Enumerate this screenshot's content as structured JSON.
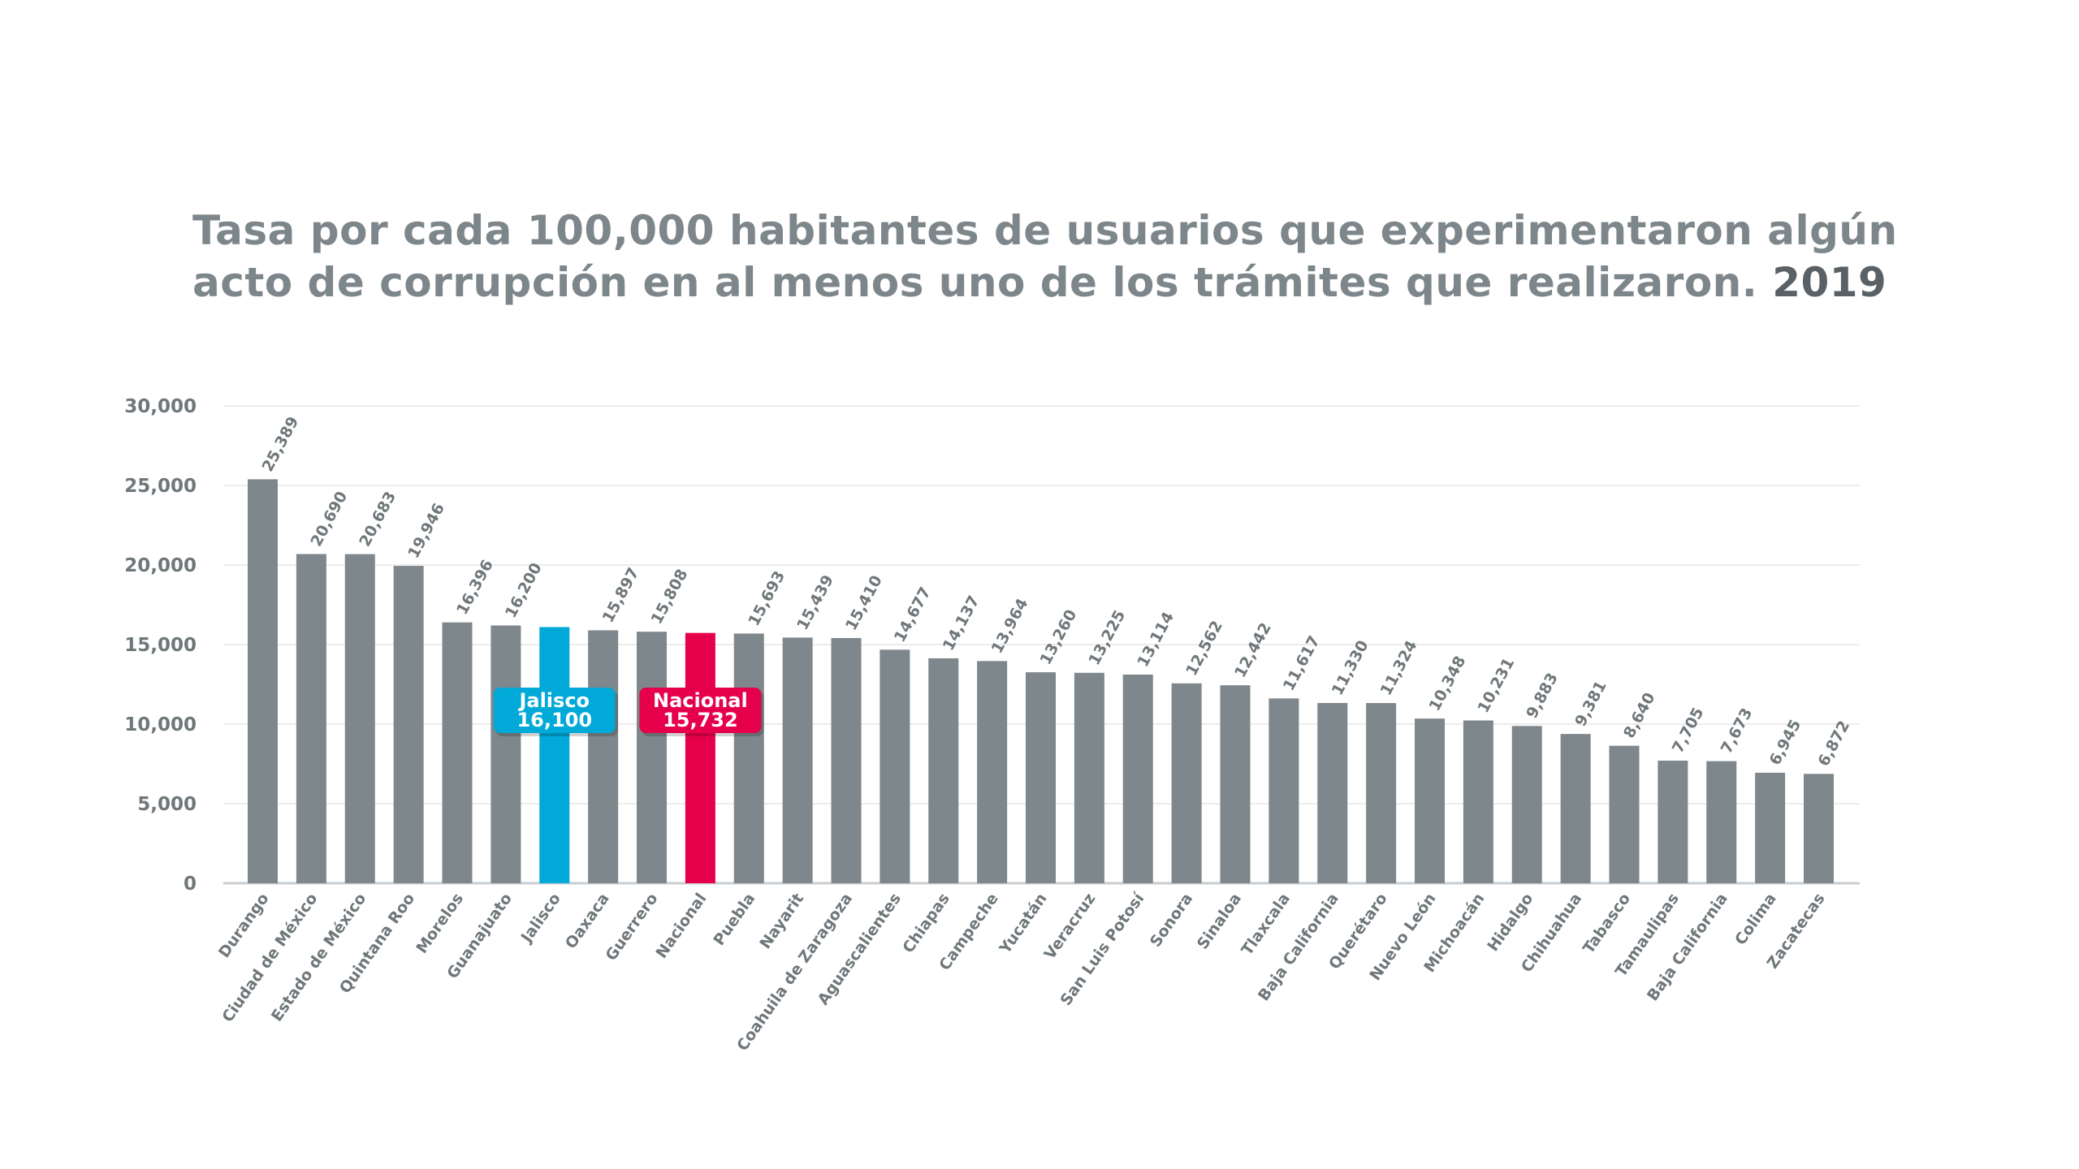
{
  "title": {
    "line1": "Tasa por cada 100,000 habitantes de usuarios que experimentaron algún",
    "line2": "acto de corrupción en al menos uno de los trámites que realizaron.",
    "year": "2019"
  },
  "colors": {
    "bar": "#7e878c",
    "jalisco": "#00a9d8",
    "nacional": "#e6004c"
  },
  "chart_data": {
    "type": "bar",
    "ylim": [
      0,
      30000
    ],
    "yticks": [
      0,
      5000,
      10000,
      15000,
      20000,
      25000,
      30000
    ],
    "ytick_labels": [
      "0",
      "5,000",
      "10,000",
      "15,000",
      "20,000",
      "25,000",
      "30,000"
    ],
    "grid": true,
    "categories": [
      "Durango",
      "Ciudad de México",
      "Estado de México",
      "Quintana Roo",
      "Morelos",
      "Guanajuato",
      "Jalisco",
      "Oaxaca",
      "Guerrero",
      "Nacional",
      "Puebla",
      "Nayarit",
      "Coahuila de Zaragoza",
      "Aguascalientes",
      "Chiapas",
      "Campeche",
      "Yucatán",
      "Veracruz",
      "San Luis Potosí",
      "Sonora",
      "Sinaloa",
      "Tlaxcala",
      "Baja California",
      "Querétaro",
      "Nuevo León",
      "Michoacán",
      "Hidalgo",
      "Chihuahua",
      "Tabasco",
      "Tamaulipas",
      "Baja California",
      "Colima",
      "Zacatecas"
    ],
    "values": [
      25389,
      20690,
      20683,
      19946,
      16396,
      16200,
      16100,
      15897,
      15808,
      15732,
      15693,
      15439,
      15410,
      14677,
      14137,
      13964,
      13260,
      13225,
      13114,
      12562,
      12442,
      11617,
      11330,
      11324,
      10348,
      10231,
      9883,
      9381,
      8640,
      7705,
      7673,
      6945,
      6872
    ],
    "value_labels": [
      "25,389",
      "20,690",
      "20,683",
      "19,946",
      "16,396",
      "16,200",
      "",
      "15,897",
      "15,808",
      "",
      "15,693",
      "15,439",
      "15,410",
      "14,677",
      "14,137",
      "13,964",
      "13,260",
      "13,225",
      "13,114",
      "12,562",
      "12,442",
      "11,617",
      "11,330",
      "11,324",
      "10,348",
      "10,231",
      "9,883",
      "9,381",
      "8,640",
      "7,705",
      "7,673",
      "6,945",
      "6,872"
    ],
    "highlights": [
      {
        "category": "Jalisco",
        "name": "Jalisco",
        "value_label": "16,100",
        "color": "#00a9d8"
      },
      {
        "category": "Nacional",
        "name": "Nacional",
        "value_label": "15,732",
        "color": "#e6004c"
      }
    ]
  }
}
